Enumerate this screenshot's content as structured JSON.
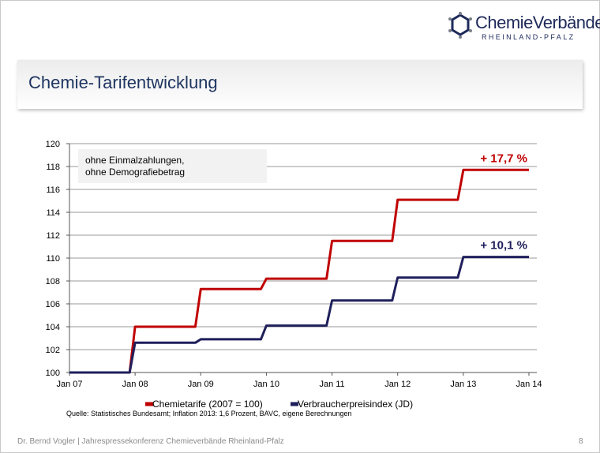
{
  "logo": {
    "name": "ChemieVerbände",
    "subtitle": "RHEINLAND-PFALZ",
    "brand_color": "#1e2a5a",
    "accent_color": "#7a7f8a"
  },
  "page_title": "Chemie-Tarifentwicklung",
  "note": {
    "line1": "ohne Einmalzahlungen,",
    "line2": "ohne Demografiebetrag"
  },
  "source": "Quelle: Statistisches Bundesamt;  Inflation 2013: 1,6 Prozent, BAVC, eigene Berechnungen",
  "footer": {
    "text": "Dr. Bernd Vogler | Jahrespressekonferenz Chemieverbände Rheinland-Pfalz",
    "page": "8"
  },
  "chart_data": {
    "type": "line",
    "title": "",
    "xlabel": "",
    "ylabel": "",
    "x_tick_labels": [
      "Jan 07",
      "Jan 08",
      "Jan 09",
      "Jan 10",
      "Jan 11",
      "Jan 12",
      "Jan 13",
      "Jan 14"
    ],
    "ylim": [
      100,
      120
    ],
    "y_ticks": [
      100,
      102,
      104,
      106,
      108,
      110,
      112,
      114,
      116,
      118,
      120
    ],
    "grid": true,
    "legend_position": "bottom",
    "series": [
      {
        "name": "Chemietarife (2007 = 100)",
        "color": "#c00000",
        "end_label": "+ 17,7 %",
        "points": [
          [
            "Jan 07",
            100.0
          ],
          [
            "Dec 07",
            100.0
          ],
          [
            "Jan 08",
            104.0
          ],
          [
            "Dec 08",
            104.0
          ],
          [
            "Jan 09",
            107.3
          ],
          [
            "Dec 09",
            107.3
          ],
          [
            "Jan 10",
            108.2
          ],
          [
            "Dec 10",
            108.2
          ],
          [
            "Jan 11",
            111.5
          ],
          [
            "Dec 11",
            111.5
          ],
          [
            "Jan 12",
            115.1
          ],
          [
            "Dec 12",
            115.1
          ],
          [
            "Jan 13",
            117.7
          ],
          [
            "Jan 14",
            117.7
          ]
        ]
      },
      {
        "name": "Verbraucherpreisindex (JD)",
        "color": "#1f1f5c",
        "end_label": "+ 10,1 %",
        "points": [
          [
            "Jan 07",
            100.0
          ],
          [
            "Dec 07",
            100.0
          ],
          [
            "Jan 08",
            102.6
          ],
          [
            "Dec 08",
            102.6
          ],
          [
            "Jan 09",
            102.9
          ],
          [
            "Dec 09",
            102.9
          ],
          [
            "Jan 10",
            104.1
          ],
          [
            "Dec 10",
            104.1
          ],
          [
            "Jan 11",
            106.3
          ],
          [
            "Dec 11",
            106.3
          ],
          [
            "Jan 12",
            108.3
          ],
          [
            "Dec 12",
            108.3
          ],
          [
            "Jan 13",
            110.1
          ],
          [
            "Jan 14",
            110.1
          ]
        ]
      }
    ]
  }
}
